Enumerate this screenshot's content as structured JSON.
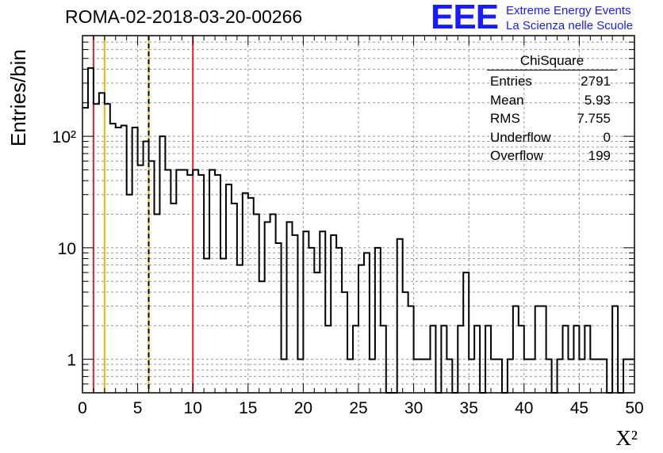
{
  "title": "ROMA-02-2018-03-20-00266",
  "logo": {
    "mark": "EEE",
    "line1": "Extreme Energy Events",
    "line2": "La Scienza nelle Scuole",
    "color": "#1a1aff"
  },
  "chart_data": {
    "type": "histogram",
    "title": "ROMA-02-2018-03-20-00266",
    "xlabel": "X²",
    "ylabel": "Entries/bin",
    "xlim": [
      0,
      50
    ],
    "ylim": [
      0.5,
      800
    ],
    "y_scale": "log",
    "grid": true,
    "x_ticks": [
      "0",
      "5",
      "10",
      "15",
      "20",
      "25",
      "30",
      "35",
      "40",
      "45",
      "50"
    ],
    "y_ticks": [
      {
        "value": 1,
        "label": "1"
      },
      {
        "value": 10,
        "label": "10"
      },
      {
        "value": 100,
        "label": "10²"
      }
    ],
    "bin_width": 0.5,
    "bin_start": 0,
    "values": [
      180,
      410,
      195,
      245,
      195,
      130,
      120,
      125,
      30,
      120,
      55,
      90,
      60,
      20,
      100,
      50,
      25,
      50,
      50,
      45,
      50,
      45,
      8,
      50,
      45,
      8,
      37,
      25,
      7,
      31,
      28,
      20,
      5,
      17,
      20,
      11,
      1,
      17,
      13,
      1,
      14,
      10,
      6,
      14,
      2,
      13,
      10,
      4,
      1,
      2,
      7,
      9,
      1,
      10,
      2,
      0.5,
      0.5,
      12,
      4,
      3,
      1,
      1,
      1,
      2,
      0.5,
      2,
      1,
      0,
      2,
      6,
      1,
      2,
      0.5,
      2,
      1,
      1,
      0.5,
      1,
      3,
      2,
      1,
      1,
      3,
      3,
      1,
      0.5,
      1,
      2,
      1,
      2,
      1,
      2,
      1,
      1,
      1,
      0.5,
      3,
      0.5,
      1,
      1
    ],
    "vertical_lines": [
      {
        "x": 1,
        "color": "#e8232b",
        "style": "solid"
      },
      {
        "x": 2,
        "color": "#f5b400",
        "style": "solid"
      },
      {
        "x": 6,
        "color": "#f5b400",
        "style": "solid"
      },
      {
        "x": 6,
        "color": "#000000",
        "style": "dashed"
      },
      {
        "x": 10,
        "color": "#e8232b",
        "style": "solid"
      }
    ],
    "stats_box": {
      "name": "ChiSquare",
      "rows": [
        {
          "label": "Entries",
          "value": "2791"
        },
        {
          "label": "Mean",
          "value": "5.93"
        },
        {
          "label": "RMS",
          "value": "7.755"
        },
        {
          "label": "Underflow",
          "value": "0"
        },
        {
          "label": "Overflow",
          "value": "199"
        }
      ]
    }
  }
}
